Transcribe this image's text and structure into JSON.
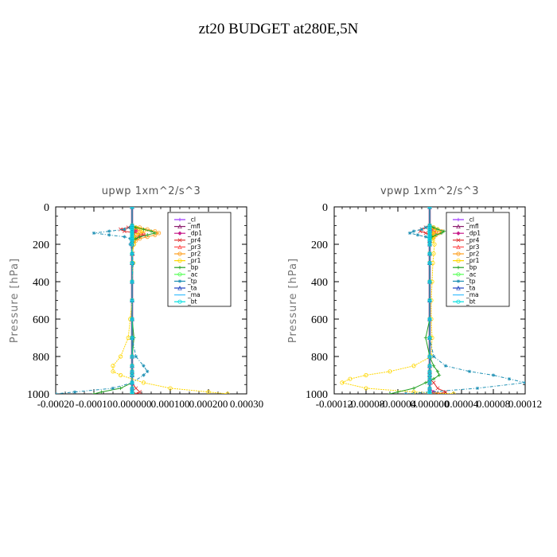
{
  "page": {
    "title": "zt20  BUDGET at280E,5N"
  },
  "chart_data": [
    {
      "type": "line",
      "title": "upwp   1xm^2/s^3",
      "xlabel": "",
      "ylabel": "Pressure [hPa]",
      "xlim": [
        -0.0002,
        0.0003
      ],
      "ylim": [
        1000,
        0
      ],
      "y_ticks": [
        0,
        200,
        400,
        600,
        800,
        1000
      ],
      "x_tick_labels": [
        "-0.00020",
        "-0.00010",
        "0.000000",
        "0.000100",
        "0.000200",
        "0.00030"
      ],
      "x_tick_values": [
        -0.0002,
        -0.0001,
        0.0,
        0.0001,
        0.0002,
        0.0003
      ],
      "legend_position": "top-right",
      "pressure": [
        0,
        100,
        110,
        120,
        130,
        140,
        150,
        160,
        170,
        180,
        200,
        250,
        300,
        400,
        500,
        600,
        700,
        800,
        850,
        880,
        900,
        940,
        970,
        990,
        1000
      ],
      "series": [
        {
          "name": "_cl",
          "color": "#9b30ff",
          "values": [
            0,
            0,
            0,
            0,
            0,
            0,
            0,
            0,
            0,
            0,
            0,
            0,
            0,
            0,
            0,
            0,
            0,
            0,
            0,
            0,
            0,
            0,
            0,
            0,
            0
          ]
        },
        {
          "name": "_mfl",
          "color": "#8b1a6b",
          "values": [
            0,
            0,
            0,
            0,
            0,
            0,
            0,
            0,
            0,
            0,
            0,
            0,
            0,
            0,
            0,
            0,
            0,
            0,
            0,
            0,
            0,
            0,
            0,
            0,
            0
          ]
        },
        {
          "name": "_dp1",
          "color": "#c81e8c",
          "values": [
            0,
            0,
            5e-06,
            1e-05,
            8e-06,
            5e-06,
            3e-06,
            2e-06,
            1e-06,
            0,
            0,
            0,
            0,
            0,
            0,
            0,
            0,
            0,
            0,
            0,
            0,
            0,
            0,
            0,
            0
          ]
        },
        {
          "name": "_pr4",
          "color": "#e03030",
          "values": [
            0,
            0,
            -1e-05,
            -3e-05,
            -2e-05,
            1e-05,
            3e-05,
            2e-05,
            1e-05,
            5e-06,
            0,
            2e-06,
            0,
            0,
            0,
            0,
            0,
            0,
            0,
            0,
            0,
            0,
            1e-05,
            2e-05,
            1e-05
          ]
        },
        {
          "name": "_pr3",
          "color": "#ff5050",
          "values": [
            0,
            0,
            5e-06,
            1e-05,
            2e-05,
            3e-05,
            2e-05,
            1e-05,
            5e-06,
            0,
            0,
            0,
            0,
            0,
            0,
            0,
            0,
            0,
            0,
            0,
            0,
            0,
            0,
            0,
            0
          ]
        },
        {
          "name": "_pr2",
          "color": "#ffa020",
          "values": [
            0,
            0,
            2e-05,
            4e-05,
            6e-05,
            7e-05,
            6e-05,
            4e-05,
            2e-05,
            1e-05,
            5e-06,
            0,
            0,
            0,
            0,
            0,
            0,
            0,
            0,
            0,
            0,
            0,
            0,
            0,
            0
          ]
        },
        {
          "name": "_pr1",
          "color": "#ffd700",
          "values": [
            0,
            0,
            1e-05,
            2e-05,
            3e-05,
            2e-05,
            1e-05,
            5e-06,
            5e-06,
            5e-06,
            5e-06,
            0,
            3e-06,
            0,
            0,
            -5e-06,
            -1e-05,
            -3e-05,
            -5e-05,
            -5e-05,
            -3e-05,
            3e-05,
            0.0001,
            0.0002,
            0.00025
          ]
        },
        {
          "name": "_bp",
          "color": "#22a022",
          "values": [
            0,
            0,
            1e-05,
            3e-05,
            5e-05,
            6e-05,
            4e-05,
            2e-05,
            1e-05,
            0,
            0,
            0,
            0,
            0,
            0,
            0,
            5e-06,
            0,
            0,
            0,
            0,
            0,
            -3e-05,
            -8e-05,
            -0.0001
          ]
        },
        {
          "name": "_ac",
          "color": "#55ff55",
          "values": [
            0,
            0,
            0,
            0,
            0,
            0,
            0,
            0,
            0,
            0,
            0,
            0,
            0,
            0,
            0,
            0,
            0,
            0,
            0,
            0,
            0,
            0,
            0,
            0,
            0
          ]
        },
        {
          "name": "_tp",
          "color": "#1e90b4",
          "values": [
            0,
            0,
            -5e-06,
            -2e-05,
            -6e-05,
            -0.0001,
            -6e-05,
            -2e-05,
            -5e-06,
            0,
            -5e-06,
            0,
            3e-06,
            0,
            0,
            0,
            0,
            1e-05,
            3e-05,
            4e-05,
            3e-05,
            0,
            -5e-05,
            -0.00015,
            -0.0002
          ]
        },
        {
          "name": "_ta",
          "color": "#2040c0",
          "values": [
            0,
            0,
            0,
            0,
            0,
            0,
            0,
            0,
            0,
            0,
            0,
            0,
            0,
            0,
            0,
            0,
            0,
            0,
            0,
            0,
            0,
            0,
            0,
            0,
            0
          ]
        },
        {
          "name": "_ma",
          "color": "#40c0ff",
          "values": [
            0,
            0,
            0,
            0,
            0,
            0,
            0,
            0,
            0,
            0,
            0,
            0,
            0,
            0,
            0,
            0,
            0,
            0,
            0,
            0,
            0,
            0,
            0,
            0,
            0
          ]
        },
        {
          "name": "_bt",
          "color": "#00e0e0",
          "values": [
            0,
            0,
            0,
            0,
            0,
            0,
            0,
            0,
            0,
            0,
            0,
            0,
            0,
            0,
            0,
            0,
            0,
            0,
            0,
            0,
            0,
            0,
            0,
            0,
            0
          ]
        }
      ]
    },
    {
      "type": "line",
      "title": "vpwp   1xm^2/s^3",
      "xlabel": "",
      "ylabel": "Pressure [hPa]",
      "xlim": [
        -0.00012,
        0.00012
      ],
      "ylim": [
        1000,
        0
      ],
      "y_ticks": [
        0,
        200,
        400,
        600,
        800,
        1000
      ],
      "x_tick_labels": [
        "-0.00012",
        "-0.00008",
        "-0.00004",
        "0.000000",
        "0.00004",
        "0.00008",
        "0.00012"
      ],
      "x_tick_values": [
        -0.00012,
        -8e-05,
        -4e-05,
        0.0,
        4e-05,
        8e-05,
        0.00012
      ],
      "legend_position": "top-right",
      "pressure": [
        0,
        100,
        110,
        120,
        130,
        140,
        150,
        160,
        170,
        180,
        200,
        250,
        300,
        400,
        500,
        600,
        700,
        800,
        850,
        880,
        900,
        920,
        940,
        970,
        990,
        1000
      ],
      "series": [
        {
          "name": "_cl",
          "color": "#9b30ff",
          "values": [
            0,
            0,
            0,
            0,
            0,
            0,
            0,
            0,
            0,
            0,
            0,
            0,
            0,
            0,
            0,
            0,
            0,
            0,
            0,
            0,
            0,
            0,
            0,
            0,
            0,
            0
          ]
        },
        {
          "name": "_mfl",
          "color": "#8b1a6b",
          "values": [
            0,
            0,
            0,
            0,
            0,
            0,
            0,
            0,
            0,
            0,
            0,
            0,
            0,
            0,
            0,
            0,
            0,
            0,
            0,
            0,
            0,
            0,
            0,
            0,
            0,
            0
          ]
        },
        {
          "name": "_dp1",
          "color": "#c81e8c",
          "values": [
            0,
            0,
            2e-06,
            4e-06,
            3e-06,
            2e-06,
            1e-06,
            0,
            0,
            0,
            0,
            0,
            0,
            0,
            0,
            0,
            0,
            0,
            0,
            0,
            0,
            0,
            0,
            0,
            5e-06,
            0
          ]
        },
        {
          "name": "_pr4",
          "color": "#e03030",
          "values": [
            0,
            0,
            -5e-06,
            -1e-05,
            -1.2e-05,
            -5e-06,
            3e-06,
            5e-06,
            3e-06,
            0,
            0,
            0,
            0,
            0,
            0,
            0,
            0,
            0,
            0,
            0,
            0,
            0,
            5e-06,
            1e-05,
            2e-05,
            1e-05
          ]
        },
        {
          "name": "_pr3",
          "color": "#ff5050",
          "values": [
            0,
            0,
            3e-06,
            6e-06,
            8e-06,
            6e-06,
            4e-06,
            2e-06,
            0,
            0,
            0,
            0,
            0,
            0,
            0,
            0,
            0,
            0,
            0,
            0,
            0,
            0,
            0,
            0,
            0,
            0
          ]
        },
        {
          "name": "_pr2",
          "color": "#ffa020",
          "values": [
            0,
            0,
            5e-06,
            1e-05,
            1.5e-05,
            1.2e-05,
            8e-06,
            4e-06,
            2e-06,
            0,
            0,
            0,
            0,
            0,
            0,
            0,
            0,
            0,
            0,
            0,
            0,
            0,
            0,
            0,
            0,
            0
          ]
        },
        {
          "name": "_pr1",
          "color": "#ffd700",
          "values": [
            0,
            0,
            5e-06,
            1e-05,
            6e-06,
            3e-06,
            4e-06,
            5e-06,
            4e-06,
            4e-06,
            6e-06,
            5e-06,
            4e-06,
            3e-06,
            2e-06,
            2e-06,
            3e-06,
            2e-06,
            -2e-05,
            -5e-05,
            -8e-05,
            -0.0001,
            -0.00011,
            -8e-05,
            -2e-05,
            3e-05
          ]
        },
        {
          "name": "_bp",
          "color": "#22a022",
          "values": [
            0,
            0,
            5e-06,
            1e-05,
            1.8e-05,
            1.5e-05,
            8e-06,
            3e-06,
            0,
            0,
            0,
            0,
            0,
            0,
            0,
            0,
            -5e-06,
            0,
            5e-06,
            1e-05,
            1.2e-05,
            5e-06,
            -5e-06,
            -2e-05,
            -4e-05,
            -5e-05
          ]
        },
        {
          "name": "_ac",
          "color": "#55ff55",
          "values": [
            0,
            0,
            0,
            0,
            0,
            0,
            0,
            0,
            0,
            0,
            0,
            0,
            0,
            0,
            0,
            0,
            0,
            0,
            0,
            0,
            0,
            0,
            0,
            0,
            0,
            0
          ]
        },
        {
          "name": "_tp",
          "color": "#1e90b4",
          "values": [
            0,
            0,
            -5e-06,
            -1e-05,
            -2e-05,
            -2.5e-05,
            -1.5e-05,
            -5e-06,
            0,
            0,
            0,
            0,
            0,
            0,
            0,
            0,
            0,
            5e-06,
            2e-05,
            5e-05,
            8e-05,
            0.0001,
            0.00012,
            6e-05,
            0,
            -3e-05
          ]
        },
        {
          "name": "_ta",
          "color": "#2040c0",
          "values": [
            0,
            0,
            0,
            0,
            0,
            0,
            0,
            0,
            0,
            0,
            0,
            0,
            0,
            0,
            0,
            0,
            0,
            0,
            0,
            0,
            0,
            0,
            0,
            0,
            0,
            0
          ]
        },
        {
          "name": "_ma",
          "color": "#40c0ff",
          "values": [
            0,
            0,
            0,
            0,
            0,
            0,
            0,
            0,
            0,
            0,
            0,
            0,
            0,
            0,
            0,
            0,
            0,
            0,
            0,
            0,
            0,
            0,
            0,
            0,
            0,
            0
          ]
        },
        {
          "name": "_bt",
          "color": "#00e0e0",
          "values": [
            0,
            0,
            0,
            0,
            0,
            0,
            0,
            0,
            0,
            0,
            0,
            0,
            0,
            0,
            0,
            0,
            0,
            0,
            0,
            0,
            0,
            0,
            0,
            0,
            0,
            0
          ]
        }
      ]
    }
  ]
}
